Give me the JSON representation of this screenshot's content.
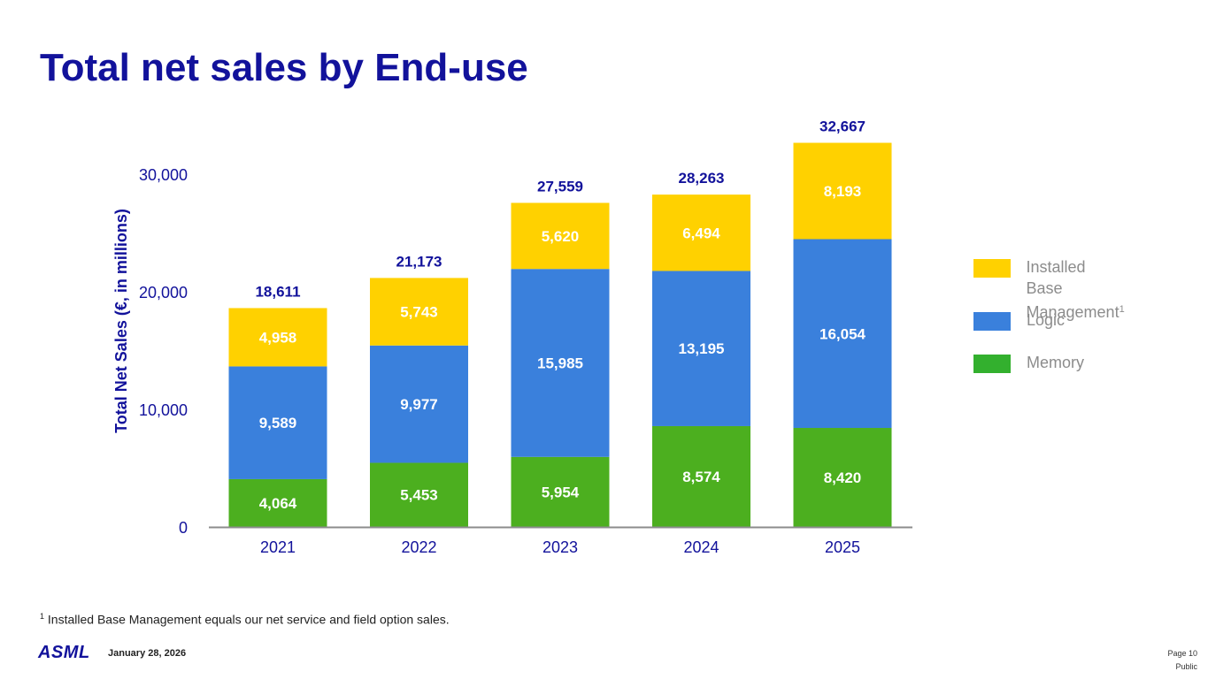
{
  "slide": {
    "title": "Total net sales by End-use",
    "footnote_mark": "1",
    "footnote_text": " Installed Base Management equals our net service and field option sales.",
    "logo_text": "ASML",
    "date": "January 28, 2026",
    "page": "Page 10",
    "classification": "Public"
  },
  "legend": {
    "ibm_line1": "Installed Base",
    "ibm_line2": "Management",
    "ibm_sup": "1",
    "logic": "Logic",
    "memory": "Memory"
  },
  "chart_data": {
    "type": "bar",
    "stacked": true,
    "ylabel": "Total Net Sales (€, in millions)",
    "ylim": [
      0,
      30000
    ],
    "yticks": [
      0,
      10000,
      20000,
      30000
    ],
    "ytick_labels": [
      "0",
      "10,000",
      "20,000",
      "30,000"
    ],
    "categories": [
      "2021",
      "2022",
      "2023",
      "2024",
      "2025"
    ],
    "series": [
      {
        "name": "Memory",
        "color": "#4caf1f",
        "values": [
          4064,
          5453,
          5954,
          8574,
          8420
        ],
        "labels": [
          "4,064",
          "5,453",
          "5,954",
          "8,574",
          "8,420"
        ]
      },
      {
        "name": "Logic",
        "color": "#3a80dc",
        "values": [
          9589,
          9977,
          15985,
          13195,
          16054
        ],
        "labels": [
          "9,589",
          "9,977",
          "15,985",
          "13,195",
          "16,054"
        ]
      },
      {
        "name": "Installed Base Management",
        "color": "#ffd100",
        "values": [
          4958,
          5743,
          5620,
          6494,
          8193
        ],
        "labels": [
          "4,958",
          "5,743",
          "5,620",
          "6,494",
          "8,193"
        ]
      }
    ],
    "totals": [
      18611,
      21173,
      27559,
      28263,
      32667
    ],
    "total_labels": [
      "18,611",
      "21,173",
      "27,559",
      "28,263",
      "32,667"
    ],
    "colors": {
      "axis_text": "#12129b",
      "total_text": "#12129b",
      "bar_text": "#ffffff",
      "baseline": "#8c8c8c"
    }
  }
}
